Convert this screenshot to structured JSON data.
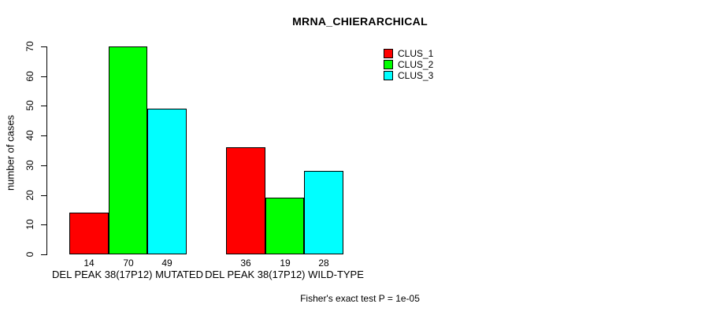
{
  "title": "MRNA_CHIERARCHICAL",
  "footer": "Fisher's exact test P = 1e-05",
  "colors": {
    "background": "#ffffff",
    "axis": "#000000",
    "bar_border": "#000000",
    "clus_1": "#ff0000",
    "clus_2": "#00ff00",
    "clus_3": "#00ffff"
  },
  "legend": {
    "position": "top-right",
    "entries": [
      {
        "label": "CLUS_1",
        "color": "#ff0000"
      },
      {
        "label": "CLUS_2",
        "color": "#00ff00"
      },
      {
        "label": "CLUS_3",
        "color": "#00ffff"
      }
    ]
  },
  "chart_data": {
    "type": "bar",
    "grouped": true,
    "title": "MRNA_CHIERARCHICAL",
    "xlabel": "",
    "ylabel": "number of cases",
    "categories": [
      "DEL PEAK 38(17P12) MUTATED",
      "DEL PEAK 38(17P12) WILD-TYPE"
    ],
    "series": [
      {
        "name": "CLUS_1",
        "color": "#ff0000",
        "values": [
          14,
          36
        ]
      },
      {
        "name": "CLUS_2",
        "color": "#00ff00",
        "values": [
          70,
          19
        ]
      },
      {
        "name": "CLUS_3",
        "color": "#00ffff",
        "values": [
          49,
          28
        ]
      }
    ],
    "bar_value_labels_shown": true,
    "ylim": [
      0,
      70
    ],
    "yticks": [
      0,
      10,
      20,
      30,
      40,
      50,
      60,
      70
    ],
    "grid": false,
    "legend_position": "top-right",
    "annotation": "Fisher's exact test P = 1e-05"
  }
}
